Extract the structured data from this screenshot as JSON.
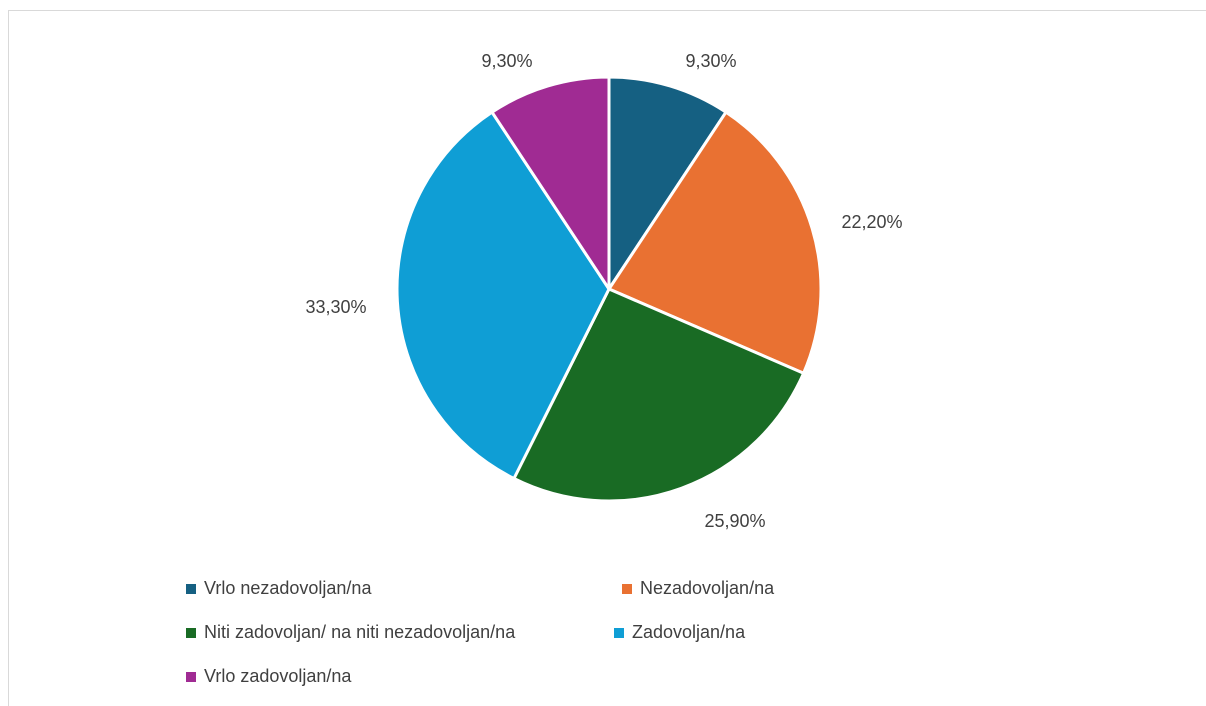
{
  "chart_data": {
    "type": "pie",
    "title": "",
    "slices": [
      {
        "name": "Vrlo nezadovoljan/na",
        "value": 9.3,
        "label": "9,30%",
        "color": "#156082"
      },
      {
        "name": "Nezadovoljan/na",
        "value": 22.2,
        "label": "22,20%",
        "color": "#E97132"
      },
      {
        "name": "Niti zadovoljan/ na niti nezadovoljan/na",
        "value": 25.9,
        "label": "25,90%",
        "color": "#196B24"
      },
      {
        "name": "Zadovoljan/na",
        "value": 33.3,
        "label": "33,30%",
        "color": "#0F9ED5"
      },
      {
        "name": "Vrlo zadovoljan/na",
        "value": 9.3,
        "label": "9,30%",
        "color": "#A02B93"
      }
    ],
    "legend_position": "bottom"
  }
}
